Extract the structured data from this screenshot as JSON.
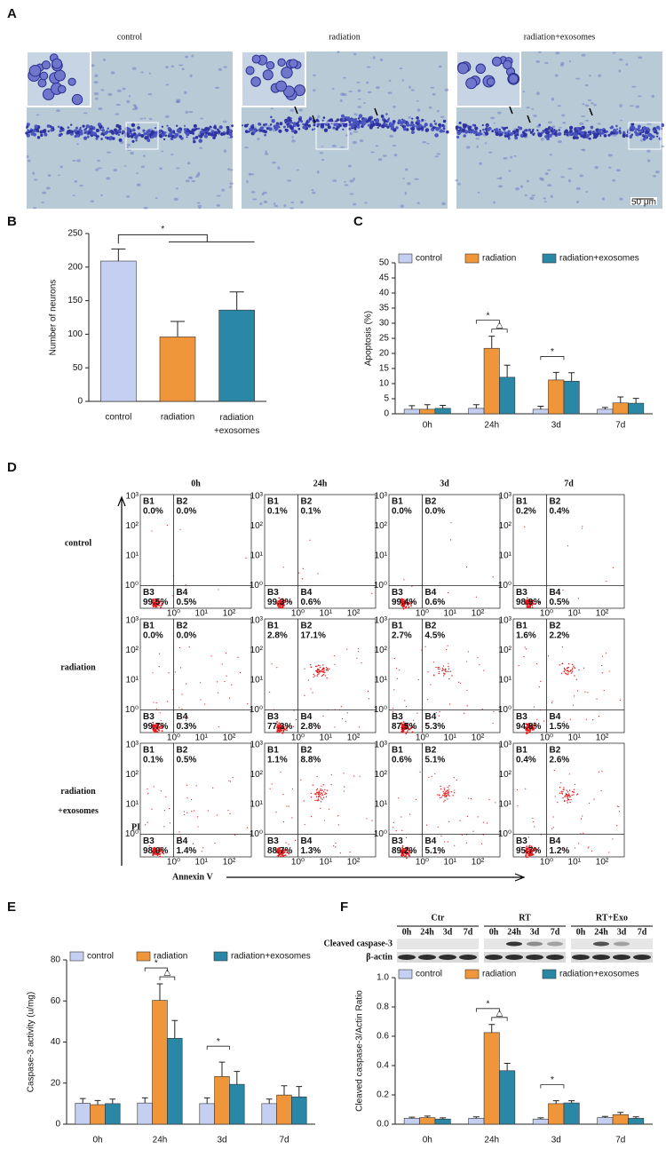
{
  "panel_labels": [
    "A",
    "B",
    "C",
    "D",
    "E",
    "F"
  ],
  "micrographs": {
    "titles": [
      "control",
      "radiation",
      "radiation+exosomes"
    ],
    "scale_bar": "50 μm"
  },
  "chart_data": [
    {
      "type": "bar",
      "ylabel": "Number of neurons",
      "categories": [
        "control",
        "radiation",
        "radiation\n+exosomes"
      ],
      "values": [
        209,
        96,
        136
      ],
      "errors": [
        18,
        23,
        27
      ],
      "colors": [
        "#c5cff2",
        "#f0963a",
        "#2a87a6"
      ],
      "ylim": [
        0,
        250
      ],
      "yticks": [
        0,
        50,
        100,
        150,
        200,
        250
      ],
      "annotations": [
        "*"
      ]
    },
    {
      "type": "bar",
      "ylabel": "Apoptosis (%)",
      "categories": [
        "0h",
        "24h",
        "3d",
        "7d"
      ],
      "series": [
        {
          "name": "control",
          "color": "#c5cff2",
          "values": [
            1.5,
            1.8,
            1.5,
            1.5
          ],
          "errors": [
            1.2,
            1.2,
            1.0,
            0.6
          ]
        },
        {
          "name": "radiation",
          "color": "#f0963a",
          "values": [
            1.5,
            21.7,
            11.2,
            3.6
          ],
          "errors": [
            1.5,
            4.0,
            2.5,
            2.0
          ]
        },
        {
          "name": "radiation+exosomes",
          "color": "#2a87a6",
          "values": [
            1.8,
            12.1,
            10.8,
            3.5
          ],
          "errors": [
            1.0,
            4.0,
            2.8,
            1.6
          ]
        }
      ],
      "ylim": [
        0,
        50
      ],
      "yticks": [
        0,
        5,
        10,
        15,
        20,
        25,
        30,
        35,
        40,
        45,
        50
      ],
      "legend": "top",
      "annotations": [
        "*",
        "△",
        "*"
      ]
    },
    {
      "type": "bar",
      "ylabel": "Caspase-3 activity (u/mg)",
      "categories": [
        "0h",
        "24h",
        "3d",
        "7d"
      ],
      "series": [
        {
          "name": "control",
          "color": "#c5cff2",
          "values": [
            10.2,
            10.3,
            10.0,
            10.0
          ],
          "errors": [
            2.3,
            2.5,
            2.8,
            2.2
          ]
        },
        {
          "name": "radiation",
          "color": "#f0963a",
          "values": [
            9.5,
            60.3,
            23.2,
            14.2
          ],
          "errors": [
            2.0,
            8.0,
            7.0,
            4.5
          ]
        },
        {
          "name": "radiation+exosomes",
          "color": "#2a87a6",
          "values": [
            10.0,
            41.8,
            19.4,
            13.3
          ],
          "errors": [
            2.2,
            8.7,
            6.3,
            5.0
          ]
        }
      ],
      "ylim": [
        0,
        80
      ],
      "yticks": [
        0,
        20,
        40,
        60,
        80
      ],
      "legend": "top",
      "annotations": [
        "*",
        "△",
        "*"
      ]
    },
    {
      "type": "bar",
      "ylabel": "Cleaved caspase-3/Actin Ratio",
      "categories": [
        "0h",
        "24h",
        "3d",
        "7d"
      ],
      "series": [
        {
          "name": "control",
          "color": "#c5cff2",
          "values": [
            0.04,
            0.04,
            0.035,
            0.045
          ],
          "errors": [
            0.008,
            0.01,
            0.008,
            0.008
          ]
        },
        {
          "name": "radiation",
          "color": "#f0963a",
          "values": [
            0.045,
            0.625,
            0.14,
            0.065
          ],
          "errors": [
            0.01,
            0.055,
            0.02,
            0.015
          ]
        },
        {
          "name": "radiation+exosomes",
          "color": "#2a87a6",
          "values": [
            0.035,
            0.365,
            0.145,
            0.04
          ],
          "errors": [
            0.008,
            0.05,
            0.015,
            0.01
          ]
        }
      ],
      "ylim": [
        0,
        1
      ],
      "yticks": [
        {
          "value": 0,
          "label": "0.0"
        },
        0.2,
        0.4,
        0.6,
        0.8,
        {
          "value": 1,
          "label": "1.0"
        }
      ],
      "legend": "top",
      "annotations": [
        "*",
        "△",
        "*"
      ]
    }
  ],
  "flow_cytometry": {
    "columns": [
      "0h",
      "24h",
      "3d",
      "7d"
    ],
    "rows": [
      "control",
      "radiation",
      "radiation\n+exosomes"
    ],
    "x_label": "Annexin V",
    "y_label": "PI",
    "quadrants": [
      "B1",
      "B2",
      "B3",
      "B4"
    ],
    "decades": [
      "10⁰",
      "10¹",
      "10²",
      "10³"
    ],
    "plots": [
      [
        [
          "0.0%",
          "0.0%",
          "99.5%",
          "0.5%"
        ],
        [
          "0.1%",
          "0.1%",
          "99.3%",
          "0.6%"
        ],
        [
          "0.0%",
          "0.0%",
          "99.4%",
          "0.6%"
        ],
        [
          "0.2%",
          "0.4%",
          "98.9%",
          "0.5%"
        ]
      ],
      [
        [
          "0.0%",
          "0.0%",
          "99.7%",
          "0.3%"
        ],
        [
          "2.8%",
          "17.1%",
          "77.3%",
          "2.8%"
        ],
        [
          "2.7%",
          "4.5%",
          "87.5%",
          "5.3%"
        ],
        [
          "1.6%",
          "2.2%",
          "94.8%",
          "1.5%"
        ]
      ],
      [
        [
          "0.1%",
          "0.5%",
          "98.0%",
          "1.4%"
        ],
        [
          "1.1%",
          "8.8%",
          "88.7%",
          "1.3%"
        ],
        [
          "0.6%",
          "5.1%",
          "89.2%",
          "5.1%"
        ],
        [
          "0.4%",
          "2.6%",
          "95.7%",
          "1.2%"
        ]
      ]
    ]
  },
  "western_blot": {
    "groups": [
      "Ctr",
      "RT",
      "RT+Exo"
    ],
    "lanes": [
      "0h",
      "24h",
      "3d",
      "7d"
    ],
    "rows": [
      "Cleaved caspase-3",
      "β-actin"
    ]
  }
}
